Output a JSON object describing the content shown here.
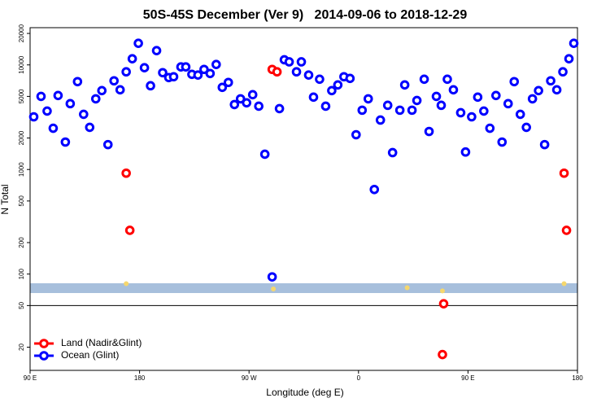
{
  "chart_data": {
    "type": "scatter",
    "title": "50S-45S December (Ver 9)   2014-09-06 to 2018-12-29",
    "x_label": "Longitude (deg E)",
    "y_label": "N Total",
    "log_y": true,
    "legend": "bottom-left",
    "hline": 50,
    "xlim": [
      90,
      540
    ],
    "ylim": [
      12,
      22700
    ],
    "xticks": [
      {
        "value": 90,
        "label": "90 E"
      },
      180,
      {
        "value": 270,
        "label": "90 W"
      },
      {
        "value": 360,
        "label": "0"
      },
      {
        "value": 450,
        "label": "90 E"
      },
      {
        "value": 540,
        "label": "180"
      }
    ],
    "yticks": [
      20,
      50,
      100,
      200,
      500,
      1000,
      2000,
      5000,
      10000,
      20000
    ],
    "series": [
      {
        "name": "Land (Nadir&Glint)",
        "color": "#ff0000",
        "x": [
          169,
          172,
          289,
          293,
          430,
          429,
          529,
          531
        ],
        "values": [
          922,
          262,
          9060,
          8590,
          52,
          17,
          922,
          262
        ]
      },
      {
        "name": "Ocean (Glint)",
        "color": "#0000ff",
        "x": [
          93,
          99,
          104,
          109,
          113,
          119,
          123,
          129,
          134,
          139,
          144,
          149,
          154,
          159,
          164,
          169,
          174,
          179,
          184,
          189,
          194,
          199,
          204,
          208,
          214,
          218,
          223,
          228,
          233,
          238,
          243,
          248,
          253,
          258,
          263,
          268,
          273,
          278,
          283,
          289,
          295,
          299,
          303,
          309,
          313,
          319,
          323,
          328,
          333,
          338,
          343,
          348,
          353,
          358,
          363,
          368,
          373,
          378,
          384,
          388,
          394,
          398,
          404,
          408,
          414,
          418,
          424,
          428,
          433,
          438,
          444,
          448,
          453,
          458,
          463,
          468,
          473,
          478,
          483,
          488,
          493,
          498,
          503,
          508,
          513,
          518,
          523,
          528,
          533,
          537
        ],
        "values": [
          3190,
          5000,
          3620,
          2480,
          5100,
          1830,
          4260,
          6920,
          3370,
          2530,
          4740,
          5680,
          1730,
          7050,
          5780,
          8590,
          11450,
          16100,
          9400,
          6320,
          13700,
          8430,
          7570,
          7710,
          9570,
          9570,
          8130,
          8000,
          9060,
          8280,
          10100,
          6100,
          6800,
          4180,
          4740,
          4340,
          5190,
          4030,
          1400,
          94,
          3820,
          11200,
          10700,
          8590,
          10700,
          8000,
          4920,
          7300,
          4030,
          5680,
          6440,
          7710,
          7430,
          2150,
          3690,
          4740,
          644,
          2970,
          4110,
          1450,
          3690,
          6440,
          3690,
          4570,
          7300,
          2310,
          5000,
          4110,
          7300,
          5780,
          3490,
          1470,
          3190,
          4920,
          3620,
          2480,
          5100,
          1830,
          4260,
          6920,
          3370,
          2530,
          4740,
          5680,
          1730,
          7050,
          5780,
          8590,
          11450,
          16100
        ]
      },
      {
        "color": "#f5d76e",
        "x": [
          169,
          290,
          400,
          429,
          529
        ],
        "values": [
          81,
          72,
          74,
          69,
          81
        ]
      }
    ]
  }
}
